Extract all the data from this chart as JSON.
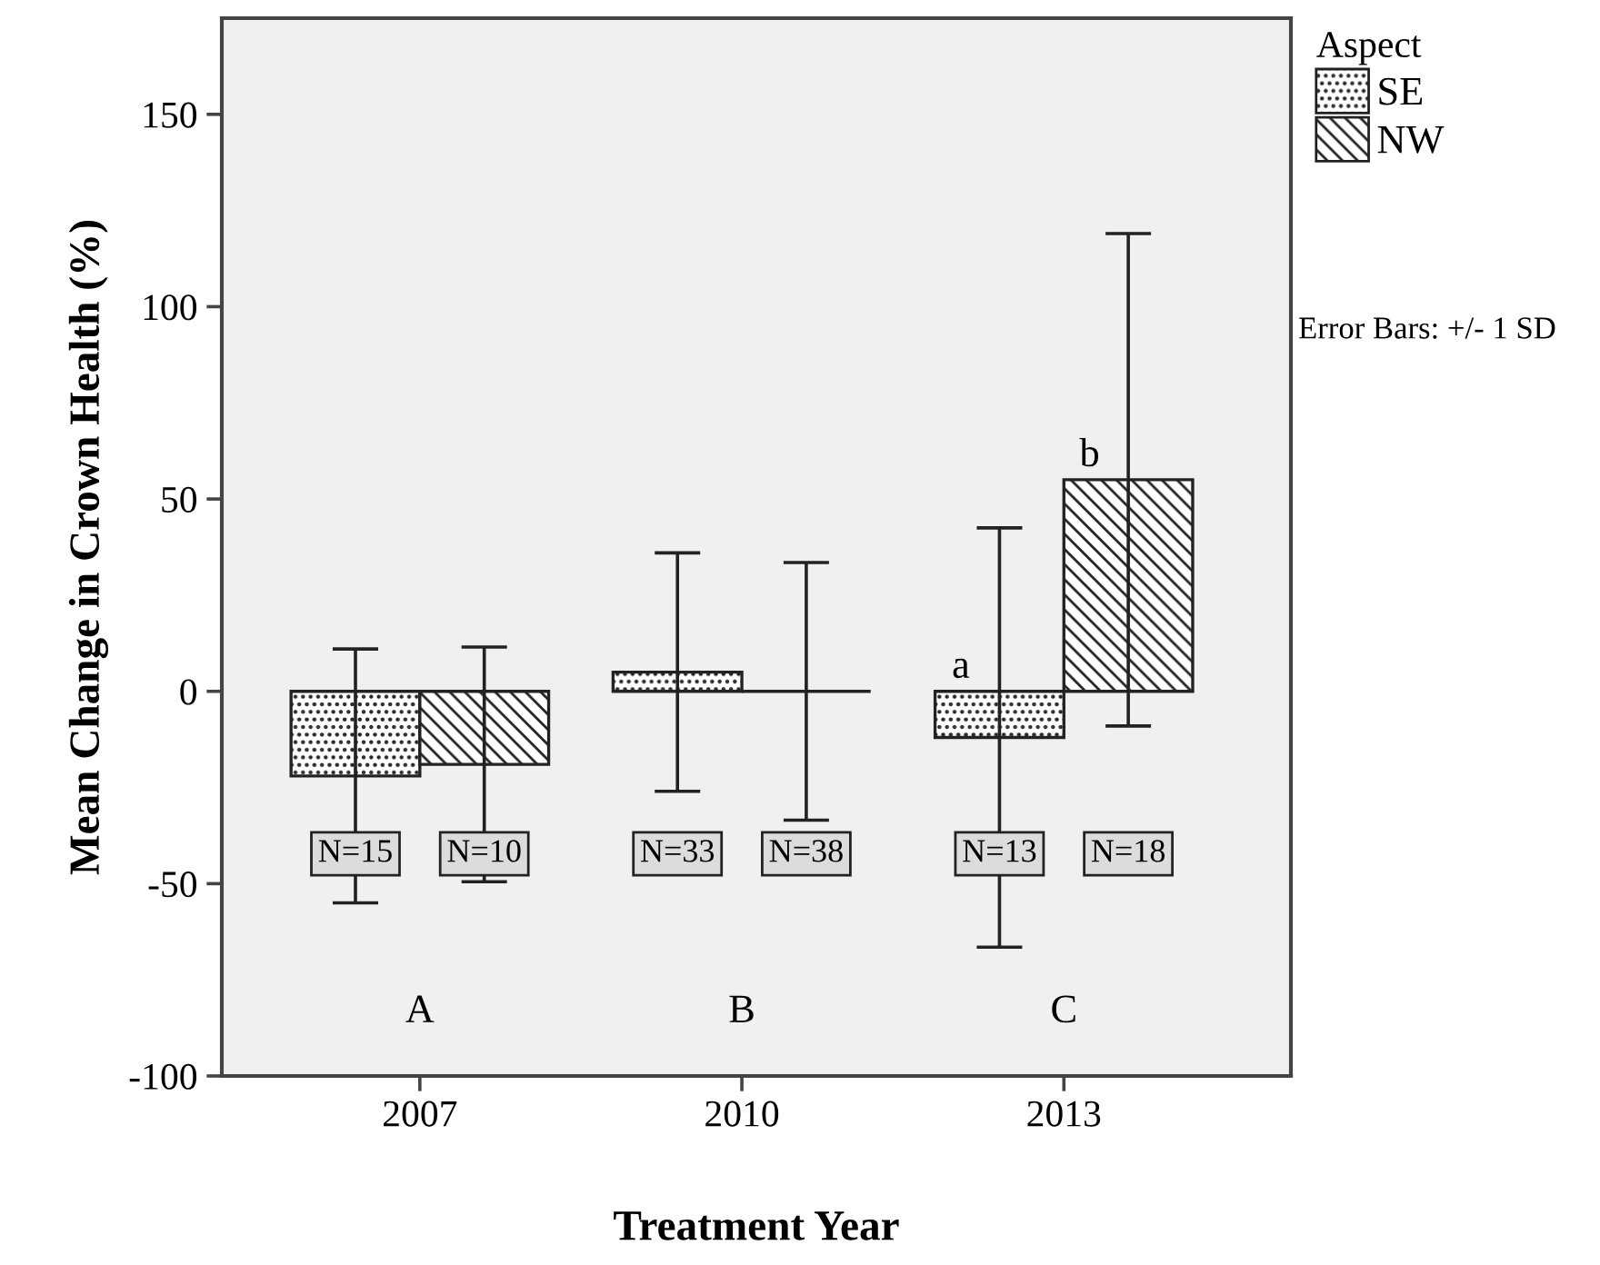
{
  "chart_data": {
    "type": "bar",
    "xlabel": "Treatment Year",
    "ylabel": "Mean Change in Crown Health (%)",
    "legend_title": "Aspect",
    "categories": [
      "2007",
      "2010",
      "2013"
    ],
    "series": [
      {
        "name": "SE",
        "color": "#222222",
        "values": [
          -22,
          5,
          -12
        ],
        "errors": [
          33,
          31,
          54.5
        ]
      },
      {
        "name": "NW",
        "color": "#222222",
        "values": [
          -19,
          0,
          55
        ],
        "errors": [
          30.5,
          33.5,
          64
        ]
      }
    ],
    "ylim": [
      -100,
      175
    ],
    "yticks": [
      -100,
      -50,
      0,
      50,
      100,
      150
    ],
    "grid": false,
    "legend": "top right",
    "annotations": [
      "N=15",
      "N=10",
      "N=33",
      "N=38",
      "N=13",
      "N=18",
      "A",
      "B",
      "C",
      "a",
      "b",
      "Error Bars: +/- 1 SD"
    ]
  }
}
